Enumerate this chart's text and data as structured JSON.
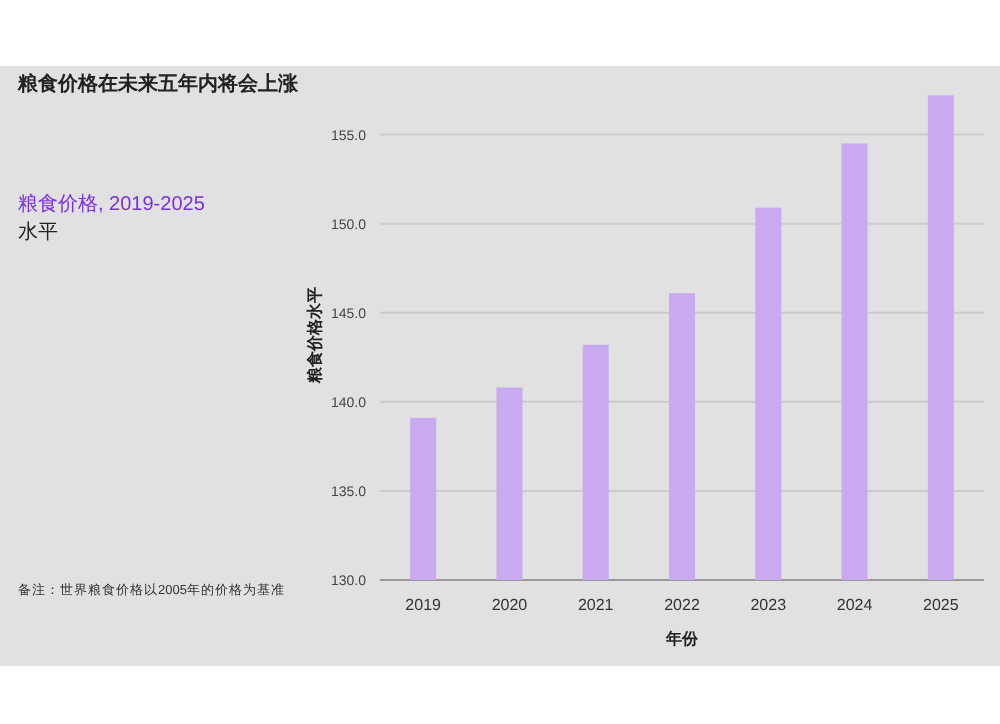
{
  "chart_data": {
    "type": "bar",
    "title": "粮食价格在未来五年内将会上涨",
    "subtitle": "粮食价格, 2019-2025",
    "xlabel": "年份",
    "ylabel": "粮食价格水平",
    "annotations": [
      "水平",
      "备注：世界粮食价格以2005年的价格为基准"
    ],
    "categories": [
      "2019",
      "2020",
      "2021",
      "2022",
      "2023",
      "2024",
      "2025"
    ],
    "values": [
      139.1,
      140.8,
      143.2,
      146.1,
      150.9,
      154.5,
      157.2
    ],
    "color": "#c9aaf0",
    "ylim": [
      130,
      157.5
    ],
    "yticks": [
      {
        "value": 130,
        "label": "130.0"
      },
      {
        "value": 135,
        "label": "135.0"
      },
      {
        "value": 140,
        "label": "140.0"
      },
      {
        "value": 145,
        "label": "145.0"
      },
      {
        "value": 150,
        "label": "150.0"
      },
      {
        "value": 155,
        "label": "155.0"
      }
    ],
    "grid": "y"
  }
}
